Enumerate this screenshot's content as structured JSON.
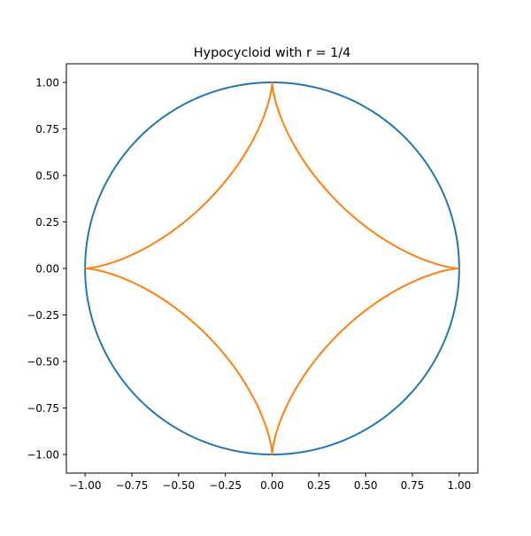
{
  "chart_data": {
    "type": "line",
    "title": "Hypocycloid with r = 1/4",
    "xlabel": "",
    "ylabel": "",
    "xlim": [
      -1.1,
      1.1
    ],
    "ylim": [
      -1.1,
      1.1
    ],
    "grid": false,
    "aspect": "equal",
    "x_ticks": [
      -1.0,
      -0.75,
      -0.5,
      -0.25,
      0.0,
      0.25,
      0.5,
      0.75,
      1.0
    ],
    "x_tick_labels": [
      "−1.00",
      "−0.75",
      "−0.50",
      "−0.25",
      "0.00",
      "0.25",
      "0.50",
      "0.75",
      "1.00"
    ],
    "y_ticks": [
      1.0,
      0.75,
      0.5,
      0.25,
      0.0,
      -0.25,
      -0.5,
      -0.75,
      -1.0
    ],
    "y_tick_labels": [
      "1.00",
      "0.75",
      "0.50",
      "0.25",
      "0.00",
      "−0.25",
      "−0.50",
      "−0.75",
      "−1.00"
    ],
    "series": [
      {
        "name": "circle",
        "color": "#1f77b4",
        "curve": "circle",
        "radius": 1.0,
        "t_range": [
          0,
          6.283185307179586
        ],
        "samples": 400
      },
      {
        "name": "hypocycloid",
        "color": "#ff7f0e",
        "curve": "hypocycloid",
        "R": 1.0,
        "r": 0.25,
        "t_range": [
          0,
          6.283185307179586
        ],
        "samples": 800
      }
    ]
  }
}
